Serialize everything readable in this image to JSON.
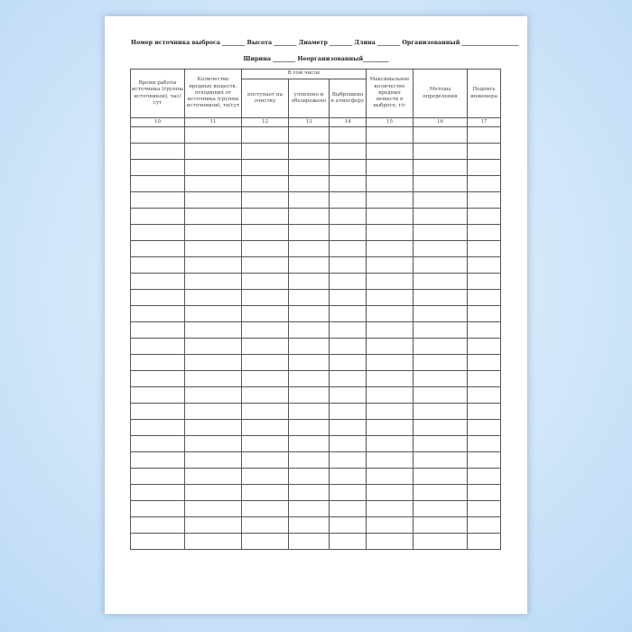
{
  "form": {
    "line1": "Номер источника выброса ________ Высота ________ Диаметр ________ Длина ________ Организованный ____________________",
    "line2": "Ширина ________ Неорганизованный_________"
  },
  "table": {
    "headers": {
      "c10": "Время работы источника (группы источников), час/сут",
      "c11": "Количество вредных веществ, отходящих от источника (группы источников), тн/сут",
      "group": "В том числе",
      "c12": "поступает на очистку",
      "c13": "уловлено и обезврежено",
      "c14": "Выброшено в атмосферу",
      "c15": "Максимальное количество вредных веществ в выбросе, г/с",
      "c16": "Методы определения",
      "c17": "Подпись инженера"
    },
    "numbers": [
      "10",
      "11",
      "12",
      "13",
      "14",
      "15",
      "16",
      "17"
    ],
    "empty_rows": 26
  }
}
